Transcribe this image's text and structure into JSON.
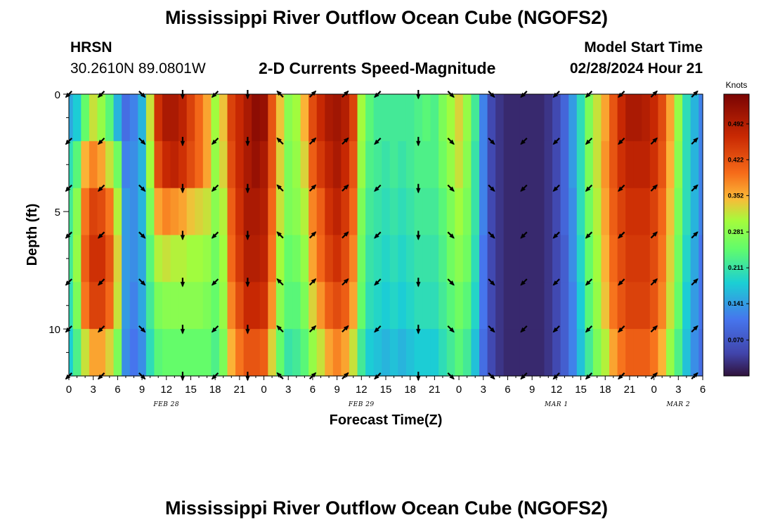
{
  "header": {
    "main_title": "Mississippi River Outflow Ocean Cube (NGOFS2)",
    "station_code": "HRSN",
    "station_coords": "30.2610N  89.0801W",
    "product_title": "2-D Currents Speed-Magnitude",
    "model_start_label": "Model Start Time",
    "model_start_value": "02/28/2024 Hour 21"
  },
  "footer": {
    "title": "Mississippi River Outflow Ocean Cube (NGOFS2)"
  },
  "colors": {
    "low": "#30123b",
    "high": "#7a0403",
    "arrow": "#000000"
  },
  "chart_data": {
    "type": "heatmap",
    "title": "2-D Currents Speed-Magnitude",
    "xlabel": "Forecast Time(Z)",
    "ylabel": "Depth (ft)",
    "x_unit": "hours since Feb 28 00Z",
    "xlim": [
      0,
      78
    ],
    "ylim": [
      12,
      0
    ],
    "x_tick_values": [
      0,
      3,
      6,
      9,
      12,
      15,
      18,
      21,
      24,
      27,
      30,
      33,
      36,
      39,
      42,
      45,
      48,
      51,
      54,
      57,
      60,
      63,
      66,
      69,
      72,
      75,
      78
    ],
    "x_tick_labels": [
      "0",
      "3",
      "6",
      "9",
      "12",
      "15",
      "18",
      "21",
      "0",
      "3",
      "6",
      "9",
      "12",
      "15",
      "18",
      "21",
      "0",
      "3",
      "6",
      "9",
      "12",
      "15",
      "18",
      "21",
      "0",
      "3",
      "6"
    ],
    "y_ticks": [
      0,
      5,
      10
    ],
    "date_labels": [
      {
        "label": "FEB 28",
        "x": 12
      },
      {
        "label": "FEB 29",
        "x": 36
      },
      {
        "label": "MAR 1",
        "x": 60
      },
      {
        "label": "MAR 2",
        "x": 75
      }
    ],
    "colorbar": {
      "title": "Knots",
      "ticks": [
        "0.070",
        "0.141",
        "0.211",
        "0.281",
        "0.352",
        "0.422",
        "0.492"
      ],
      "tick_values": [
        0.07,
        0.141,
        0.211,
        0.281,
        0.352,
        0.422,
        0.492
      ],
      "range": [
        0.0,
        0.55
      ]
    },
    "depth_rows": [
      1,
      3,
      5,
      7,
      9,
      11
    ],
    "speed_profile": {
      "hours": [
        0,
        1,
        2,
        3,
        4,
        5,
        6,
        7,
        8,
        9,
        10,
        11,
        12,
        13,
        14,
        15,
        16,
        17,
        18,
        19,
        20,
        21,
        22,
        23,
        24,
        25,
        26,
        27,
        28,
        29,
        30,
        31,
        32,
        33,
        34,
        35,
        36,
        37,
        38,
        39,
        40,
        41,
        42,
        43,
        44,
        45,
        46,
        47,
        48,
        49,
        50,
        51,
        52,
        53,
        54,
        55,
        56,
        57,
        58,
        59,
        60,
        61,
        62,
        63,
        64,
        65,
        66,
        67,
        68,
        69,
        70,
        71,
        72,
        73,
        74,
        75,
        76,
        77,
        78
      ],
      "depth_1": [
        0.15,
        0.18,
        0.25,
        0.32,
        0.29,
        0.24,
        0.16,
        0.1,
        0.12,
        0.16,
        0.32,
        0.46,
        0.5,
        0.5,
        0.48,
        0.44,
        0.4,
        0.36,
        0.3,
        0.34,
        0.44,
        0.47,
        0.5,
        0.53,
        0.52,
        0.42,
        0.34,
        0.28,
        0.3,
        0.35,
        0.43,
        0.47,
        0.5,
        0.51,
        0.49,
        0.44,
        0.3,
        0.24,
        0.22,
        0.22,
        0.22,
        0.22,
        0.22,
        0.23,
        0.24,
        0.23,
        0.27,
        0.3,
        0.33,
        0.29,
        0.22,
        0.12,
        0.05,
        0.03,
        0.02,
        0.02,
        0.02,
        0.02,
        0.02,
        0.03,
        0.05,
        0.09,
        0.14,
        0.2,
        0.27,
        0.32,
        0.36,
        0.42,
        0.47,
        0.5,
        0.5,
        0.49,
        0.47,
        0.43,
        0.36,
        0.29,
        0.2,
        0.16,
        0.12
      ],
      "depth_3": [
        0.2,
        0.24,
        0.35,
        0.38,
        0.36,
        0.32,
        0.26,
        0.12,
        0.13,
        0.16,
        0.3,
        0.43,
        0.47,
        0.48,
        0.46,
        0.43,
        0.4,
        0.36,
        0.29,
        0.33,
        0.43,
        0.47,
        0.5,
        0.52,
        0.5,
        0.42,
        0.33,
        0.27,
        0.29,
        0.33,
        0.41,
        0.45,
        0.48,
        0.5,
        0.47,
        0.42,
        0.29,
        0.23,
        0.22,
        0.21,
        0.22,
        0.21,
        0.22,
        0.23,
        0.23,
        0.23,
        0.26,
        0.29,
        0.32,
        0.28,
        0.21,
        0.12,
        0.05,
        0.03,
        0.02,
        0.02,
        0.02,
        0.02,
        0.02,
        0.03,
        0.05,
        0.09,
        0.14,
        0.2,
        0.27,
        0.32,
        0.37,
        0.42,
        0.46,
        0.48,
        0.48,
        0.48,
        0.46,
        0.42,
        0.35,
        0.28,
        0.2,
        0.16,
        0.12
      ],
      "depth_5": [
        0.22,
        0.28,
        0.39,
        0.44,
        0.43,
        0.39,
        0.31,
        0.14,
        0.13,
        0.16,
        0.27,
        0.36,
        0.38,
        0.37,
        0.36,
        0.34,
        0.33,
        0.32,
        0.28,
        0.31,
        0.41,
        0.46,
        0.5,
        0.5,
        0.49,
        0.4,
        0.32,
        0.27,
        0.28,
        0.31,
        0.38,
        0.41,
        0.46,
        0.48,
        0.45,
        0.4,
        0.27,
        0.22,
        0.21,
        0.2,
        0.21,
        0.2,
        0.21,
        0.22,
        0.22,
        0.22,
        0.24,
        0.27,
        0.3,
        0.27,
        0.21,
        0.12,
        0.05,
        0.03,
        0.02,
        0.02,
        0.02,
        0.02,
        0.02,
        0.03,
        0.05,
        0.09,
        0.13,
        0.2,
        0.26,
        0.31,
        0.36,
        0.41,
        0.44,
        0.46,
        0.46,
        0.46,
        0.44,
        0.4,
        0.34,
        0.27,
        0.2,
        0.16,
        0.12
      ],
      "depth_7": [
        0.22,
        0.29,
        0.41,
        0.46,
        0.46,
        0.42,
        0.33,
        0.14,
        0.13,
        0.15,
        0.24,
        0.31,
        0.32,
        0.31,
        0.31,
        0.3,
        0.3,
        0.29,
        0.26,
        0.3,
        0.4,
        0.45,
        0.49,
        0.49,
        0.48,
        0.39,
        0.3,
        0.25,
        0.26,
        0.29,
        0.36,
        0.4,
        0.44,
        0.46,
        0.43,
        0.38,
        0.26,
        0.21,
        0.2,
        0.19,
        0.2,
        0.19,
        0.2,
        0.21,
        0.21,
        0.21,
        0.23,
        0.26,
        0.28,
        0.26,
        0.2,
        0.11,
        0.05,
        0.03,
        0.02,
        0.02,
        0.02,
        0.02,
        0.02,
        0.03,
        0.05,
        0.08,
        0.13,
        0.19,
        0.25,
        0.3,
        0.35,
        0.4,
        0.43,
        0.45,
        0.45,
        0.45,
        0.43,
        0.39,
        0.33,
        0.26,
        0.19,
        0.15,
        0.11
      ],
      "depth_9": [
        0.2,
        0.27,
        0.39,
        0.44,
        0.44,
        0.4,
        0.32,
        0.14,
        0.12,
        0.15,
        0.22,
        0.27,
        0.28,
        0.28,
        0.28,
        0.28,
        0.28,
        0.27,
        0.25,
        0.29,
        0.38,
        0.43,
        0.47,
        0.47,
        0.46,
        0.37,
        0.28,
        0.24,
        0.24,
        0.27,
        0.33,
        0.37,
        0.41,
        0.43,
        0.41,
        0.36,
        0.25,
        0.2,
        0.19,
        0.18,
        0.19,
        0.18,
        0.19,
        0.2,
        0.2,
        0.2,
        0.22,
        0.24,
        0.26,
        0.24,
        0.19,
        0.11,
        0.05,
        0.03,
        0.02,
        0.02,
        0.02,
        0.02,
        0.02,
        0.03,
        0.05,
        0.08,
        0.12,
        0.18,
        0.24,
        0.29,
        0.34,
        0.39,
        0.42,
        0.44,
        0.44,
        0.44,
        0.42,
        0.38,
        0.32,
        0.25,
        0.18,
        0.14,
        0.11
      ],
      "depth_11": [
        0.18,
        0.23,
        0.32,
        0.36,
        0.36,
        0.33,
        0.27,
        0.13,
        0.11,
        0.13,
        0.2,
        0.24,
        0.25,
        0.25,
        0.25,
        0.25,
        0.25,
        0.25,
        0.23,
        0.27,
        0.35,
        0.39,
        0.42,
        0.42,
        0.41,
        0.33,
        0.25,
        0.21,
        0.22,
        0.24,
        0.29,
        0.32,
        0.36,
        0.38,
        0.36,
        0.32,
        0.22,
        0.18,
        0.17,
        0.16,
        0.17,
        0.16,
        0.17,
        0.18,
        0.18,
        0.18,
        0.2,
        0.22,
        0.24,
        0.22,
        0.17,
        0.1,
        0.05,
        0.03,
        0.02,
        0.02,
        0.02,
        0.02,
        0.02,
        0.03,
        0.05,
        0.08,
        0.12,
        0.17,
        0.22,
        0.27,
        0.31,
        0.36,
        0.39,
        0.41,
        0.41,
        0.41,
        0.39,
        0.35,
        0.29,
        0.23,
        0.17,
        0.13,
        0.1
      ]
    },
    "current_vectors": {
      "hours": [
        0,
        4,
        9,
        14,
        18,
        22,
        26,
        30,
        34,
        38,
        43,
        47,
        52,
        56,
        60,
        64,
        68,
        72,
        77
      ],
      "depths": [
        0,
        2,
        4,
        6,
        8,
        10,
        12
      ],
      "direction_deg": [
        225,
        225,
        315,
        270,
        225,
        270,
        135,
        45,
        45,
        225,
        270,
        315,
        315,
        225,
        225,
        225,
        225,
        45,
        45
      ]
    }
  }
}
